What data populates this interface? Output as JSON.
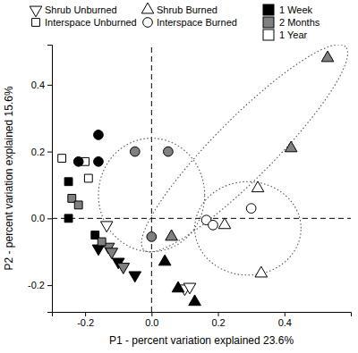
{
  "chart_data": {
    "type": "scatter",
    "x_label": "P1 - percent variation explained 23.6%",
    "y_label": "P2 - percent variation explained 15.6%",
    "xlim": [
      -0.3,
      0.6
    ],
    "ylim": [
      -0.28,
      0.52
    ],
    "xticks": [
      -0.2,
      {
        "value": 0,
        "label": "0.0"
      },
      0.2,
      0.4
    ],
    "yticks": [
      -0.2,
      {
        "value": 0,
        "label": "0.0"
      },
      0.2,
      0.4
    ],
    "grid": false,
    "legend_markers": [
      {
        "name": "Shrub Unburned",
        "marker": "triangle-down"
      },
      {
        "name": "Shrub Burned",
        "marker": "triangle-up"
      },
      {
        "name": "Interspace Unburned",
        "marker": "square"
      },
      {
        "name": "Interspace Burned",
        "marker": "circle"
      }
    ],
    "legend_colors": [
      {
        "name": "1 Week",
        "color": "#000000"
      },
      {
        "name": "2 Months",
        "color": "#808080"
      },
      {
        "name": "1 Year",
        "color": "#ffffff"
      }
    ],
    "series": [
      {
        "marker": "triangle-down",
        "color": "#000000",
        "x": [
          -0.16,
          -0.1,
          -0.05
        ],
        "values": [
          -0.09,
          -0.13,
          -0.17
        ]
      },
      {
        "marker": "triangle-down",
        "color": "#808080",
        "x": [
          -0.13,
          -0.12,
          -0.085
        ],
        "values": [
          -0.085,
          -0.1,
          -0.145
        ]
      },
      {
        "marker": "triangle-down",
        "color": "#ffffff",
        "x": [
          -0.135,
          0.1,
          0.115
        ],
        "values": [
          -0.02,
          -0.21,
          -0.205
        ]
      },
      {
        "marker": "triangle-up",
        "color": "#000000",
        "x": [
          0.04,
          0.08,
          0.13
        ],
        "values": [
          -0.13,
          -0.21,
          -0.25
        ]
      },
      {
        "marker": "triangle-up",
        "color": "#808080",
        "x": [
          0.06,
          0.42,
          0.53
        ],
        "values": [
          -0.055,
          0.21,
          0.48
        ]
      },
      {
        "marker": "triangle-up",
        "color": "#ffffff",
        "x": [
          0.22,
          0.32,
          0.33
        ],
        "values": [
          -0.02,
          0.09,
          -0.165
        ]
      },
      {
        "marker": "square",
        "color": "#000000",
        "x": [
          -0.25,
          -0.25,
          -0.17
        ],
        "values": [
          0.11,
          0.0,
          -0.05
        ]
      },
      {
        "marker": "square",
        "color": "#808080",
        "x": [
          -0.24,
          -0.22,
          -0.15
        ],
        "values": [
          0.06,
          0.04,
          -0.07
        ]
      },
      {
        "marker": "square",
        "color": "#ffffff",
        "x": [
          -0.27,
          -0.2,
          -0.19
        ],
        "values": [
          0.18,
          0.17,
          0.12
        ]
      },
      {
        "marker": "circle",
        "color": "#000000",
        "x": [
          -0.16,
          -0.22,
          -0.16
        ],
        "values": [
          0.25,
          0.17,
          0.17
        ]
      },
      {
        "marker": "circle",
        "color": "#808080",
        "x": [
          -0.05,
          0.05,
          0.0
        ],
        "values": [
          0.2,
          0.2,
          -0.055
        ]
      },
      {
        "marker": "circle",
        "color": "#ffffff",
        "x": [
          0.165,
          0.185,
          0.3
        ],
        "values": [
          -0.005,
          -0.02,
          0.03
        ]
      }
    ],
    "reference_lines": [
      {
        "axis": "x",
        "value": 0
      },
      {
        "axis": "y",
        "value": 0
      }
    ],
    "ellipses": [
      {
        "cx": 0.0,
        "cy": 0.07,
        "rx": 0.16,
        "ry": 0.17,
        "angle": 0
      },
      {
        "cx": 0.28,
        "cy": 0.21,
        "rx": 0.43,
        "ry": 0.09,
        "angle": 45
      },
      {
        "cx": 0.29,
        "cy": -0.03,
        "rx": 0.16,
        "ry": 0.14,
        "angle": 0
      }
    ]
  }
}
